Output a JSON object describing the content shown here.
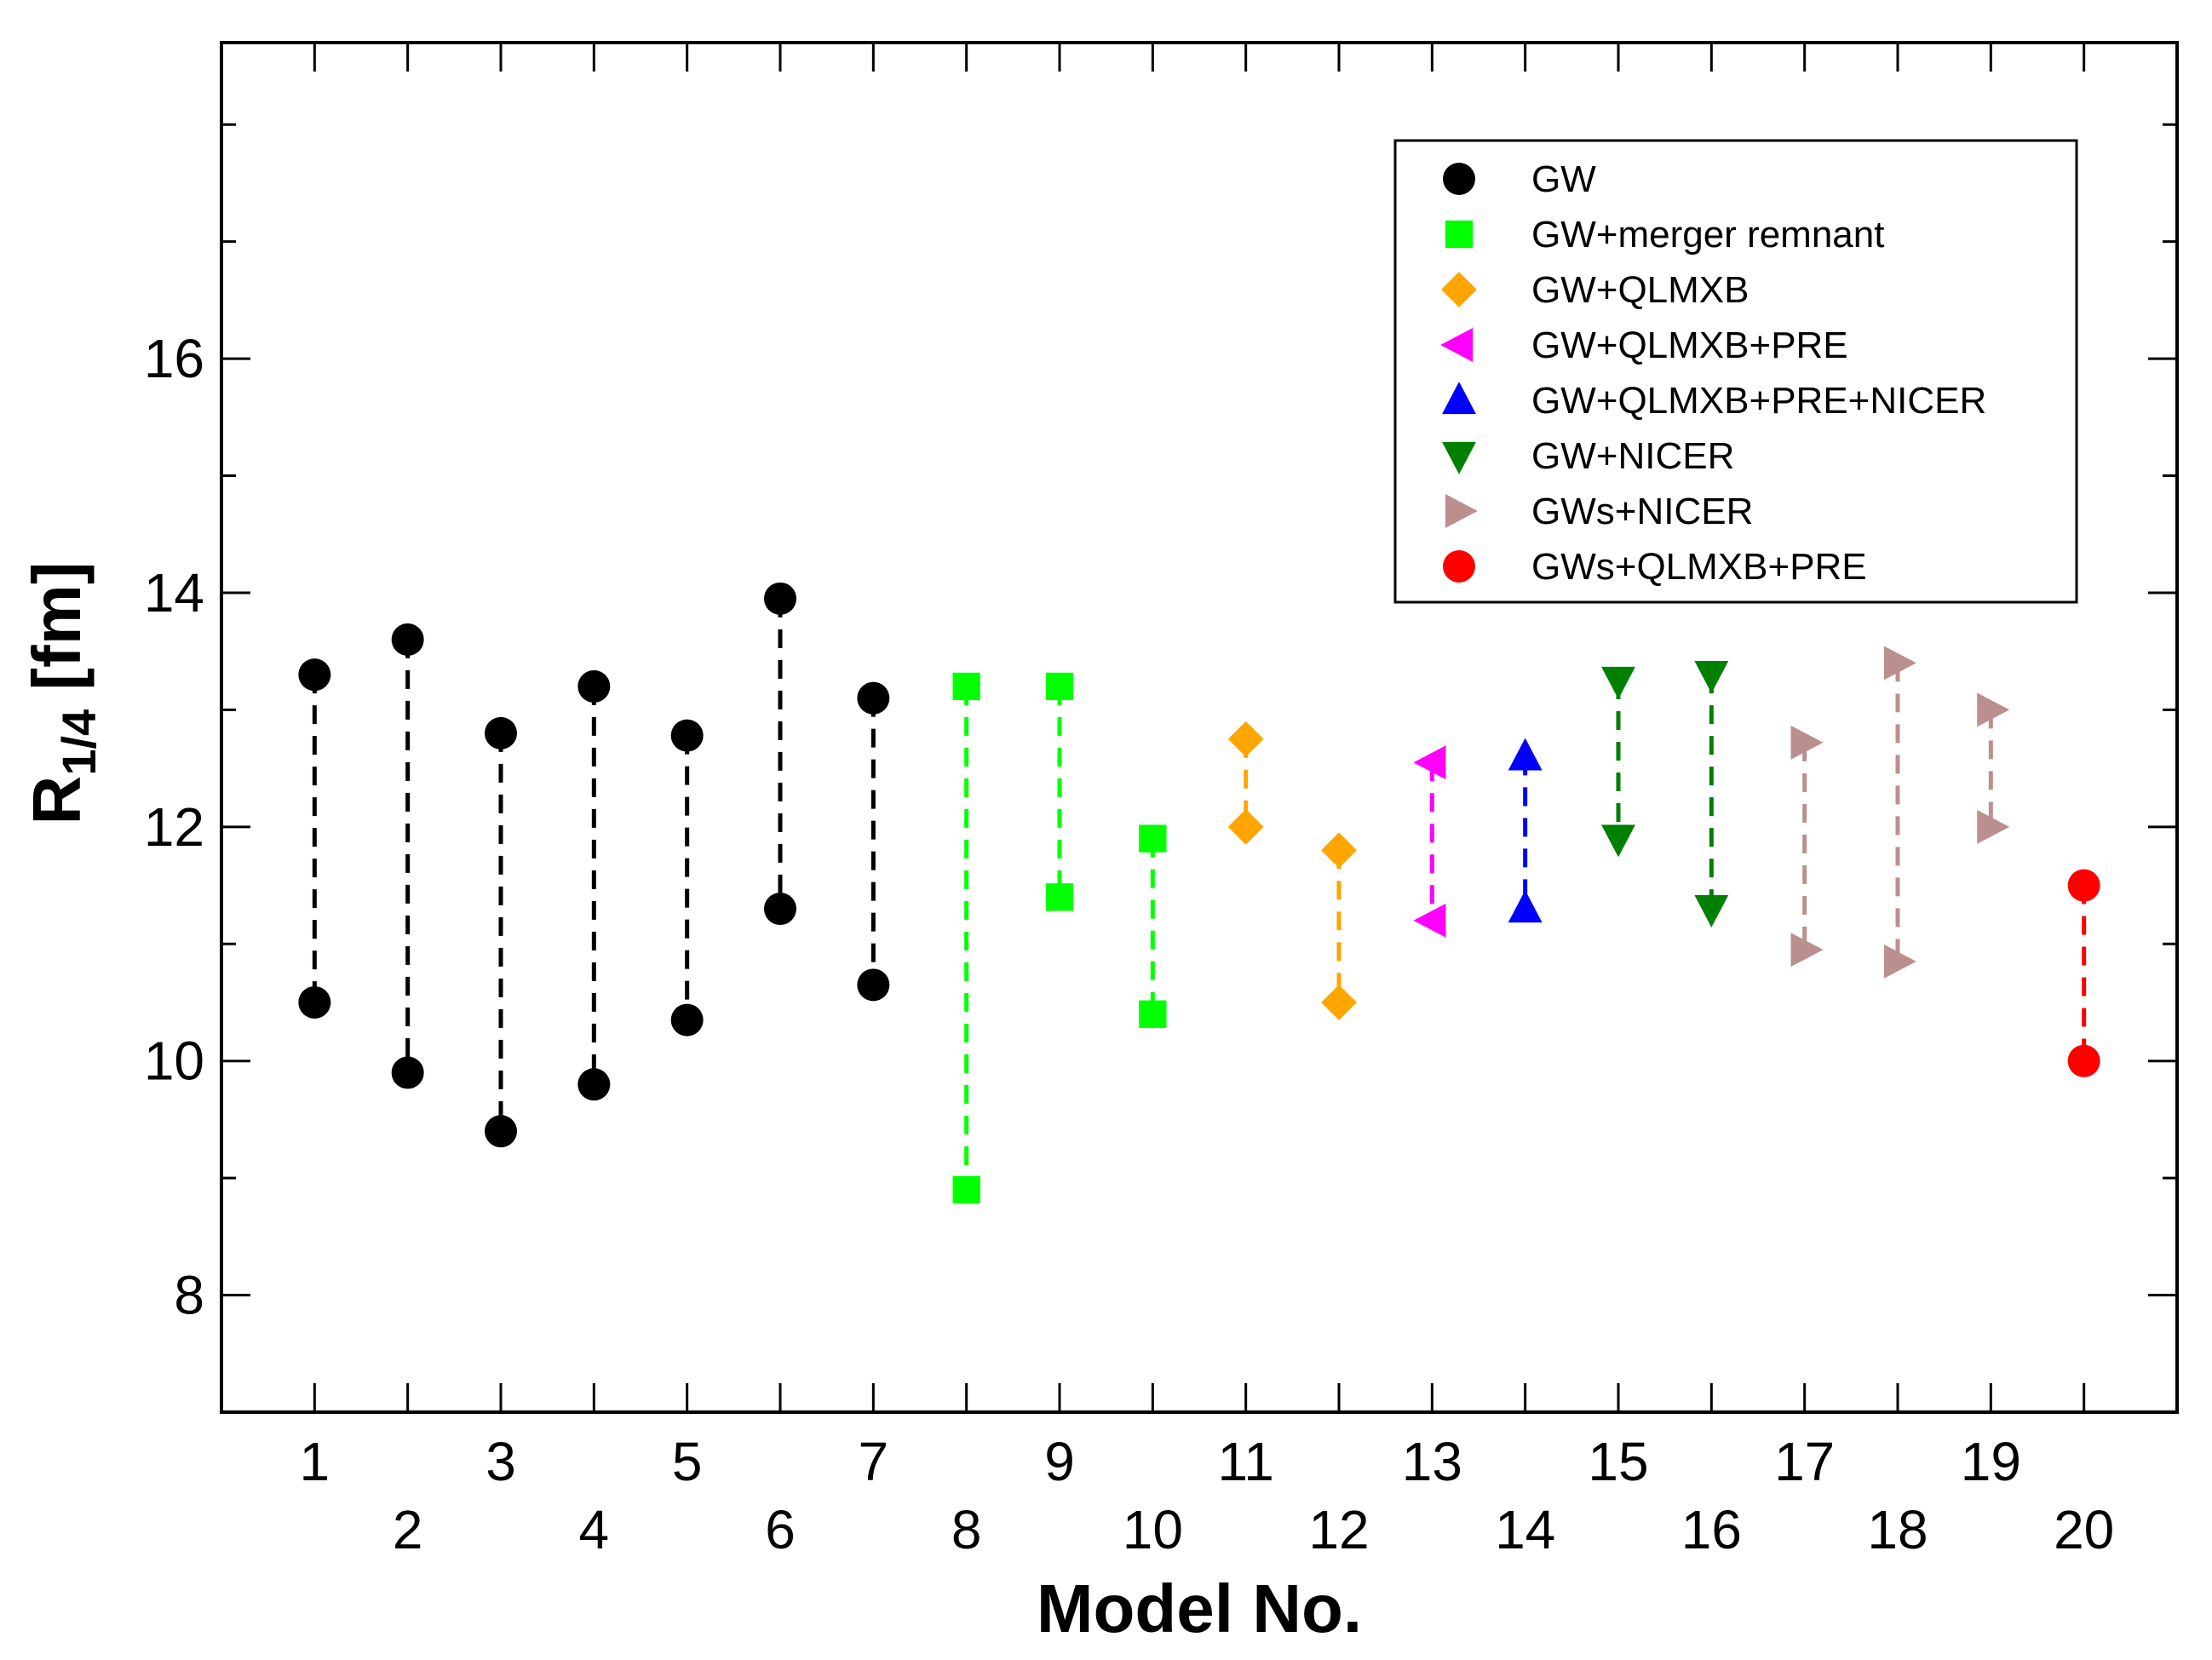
{
  "chart_data": {
    "type": "scatter",
    "title": "",
    "xlabel": "Model No.",
    "ylabel_main": "R",
    "ylabel_sub": "1/4",
    "ylabel_unit": " [fm]",
    "xlim": [
      0,
      21
    ],
    "ylim": [
      7,
      18.7
    ],
    "y_major_ticks": [
      8,
      10,
      12,
      14,
      16
    ],
    "y_major_labels": [
      "8",
      "10",
      "12",
      "14",
      "16"
    ],
    "y_minor_ticks": [
      7,
      9,
      11,
      13,
      15,
      17,
      18
    ],
    "x_ticks": [
      1,
      2,
      3,
      4,
      5,
      6,
      7,
      8,
      9,
      10,
      11,
      12,
      13,
      14,
      15,
      16,
      17,
      18,
      19,
      20
    ],
    "x_labels_top": [
      "1",
      "3",
      "5",
      "7",
      "9",
      "11",
      "13",
      "15",
      "17",
      "19"
    ],
    "x_labels_bottom": [
      "2",
      "4",
      "6",
      "8",
      "10",
      "12",
      "14",
      "16",
      "18",
      "20"
    ],
    "grid": false,
    "legend_position": "top-right",
    "series": [
      {
        "name": "GW",
        "color": "#000000",
        "marker": "circle",
        "points": [
          {
            "model": 1,
            "min": 10.5,
            "max": 13.3
          },
          {
            "model": 2,
            "min": 9.9,
            "max": 13.6
          },
          {
            "model": 3,
            "min": 9.4,
            "max": 12.8
          },
          {
            "model": 4,
            "min": 9.8,
            "max": 13.2
          },
          {
            "model": 5,
            "min": 10.35,
            "max": 12.78
          },
          {
            "model": 6,
            "min": 11.3,
            "max": 13.95
          },
          {
            "model": 7,
            "min": 10.65,
            "max": 13.1
          }
        ]
      },
      {
        "name": "GW+merger remnant",
        "color": "#00ff00",
        "marker": "square",
        "points": [
          {
            "model": 8,
            "min": 8.9,
            "max": 13.2
          },
          {
            "model": 9,
            "min": 11.4,
            "max": 13.2
          },
          {
            "model": 10,
            "min": 10.4,
            "max": 11.9
          }
        ]
      },
      {
        "name": "GW+QLMXB",
        "color": "#ffa500",
        "marker": "diamond",
        "points": [
          {
            "model": 11,
            "min": 12.0,
            "max": 12.75
          },
          {
            "model": 12,
            "min": 10.5,
            "max": 11.8
          }
        ]
      },
      {
        "name": "GW+QLMXB+PRE",
        "color": "#ff00ff",
        "marker": "triangle-left",
        "points": [
          {
            "model": 13,
            "min": 11.2,
            "max": 12.55
          }
        ]
      },
      {
        "name": "GW+QLMXB+PRE+NICER",
        "color": "#0000ff",
        "marker": "triangle-up",
        "points": [
          {
            "model": 14,
            "min": 11.3,
            "max": 12.6
          }
        ]
      },
      {
        "name": "GW+NICER",
        "color": "#008000",
        "marker": "triangle-down",
        "points": [
          {
            "model": 15,
            "min": 11.9,
            "max": 13.25
          },
          {
            "model": 16,
            "min": 11.3,
            "max": 13.3
          }
        ]
      },
      {
        "name": "GWs+NICER",
        "color": "#bc8f8f",
        "marker": "triangle-right",
        "points": [
          {
            "model": 17,
            "min": 10.95,
            "max": 12.72
          },
          {
            "model": 18,
            "min": 10.85,
            "max": 13.4
          },
          {
            "model": 19,
            "min": 12.0,
            "max": 13.0
          }
        ]
      },
      {
        "name": "GWs+QLMXB+PRE",
        "color": "#ff0000",
        "marker": "circle",
        "points": [
          {
            "model": 20,
            "min": 10.0,
            "max": 11.5
          }
        ]
      }
    ]
  }
}
